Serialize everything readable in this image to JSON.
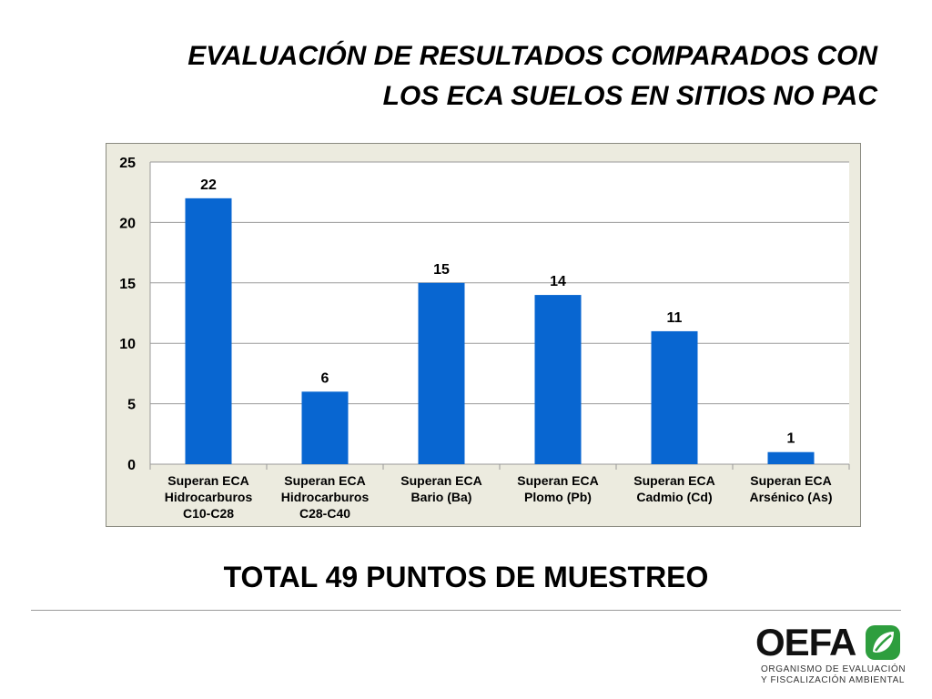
{
  "slide": {
    "title_line1": "EVALUACIÓN DE RESULTADOS COMPARADOS CON",
    "title_line2": "LOS ECA SUELOS EN SITIOS NO PAC",
    "total": "TOTAL 49 PUNTOS DE MUESTREO"
  },
  "logo": {
    "word": "OEFA",
    "line1": "ORGANISMO DE EVALUACIÓN",
    "line2": "Y FISCALIZACIÓN AMBIENTAL",
    "accent": "#2e9e3e"
  },
  "chart_data": {
    "type": "bar",
    "categories": [
      [
        "Superan ECA",
        "Hidrocarburos",
        "C10-C28"
      ],
      [
        "Superan ECA",
        "Hidrocarburos",
        "C28-C40"
      ],
      [
        "Superan ECA",
        "Bario (Ba)"
      ],
      [
        "Superan ECA",
        "Plomo (Pb)"
      ],
      [
        "Superan ECA",
        "Cadmio (Cd)"
      ],
      [
        "Superan ECA",
        "Arsénico (As)"
      ]
    ],
    "values": [
      22,
      6,
      15,
      14,
      11,
      1
    ],
    "data_labels": [
      "22",
      "6",
      "15",
      "14",
      "11",
      "1"
    ],
    "ylim": [
      0,
      25
    ],
    "yticks": [
      0,
      5,
      10,
      15,
      20,
      25
    ],
    "grid": true,
    "bar_color": "#0866d1",
    "background": "#ecebdf"
  }
}
